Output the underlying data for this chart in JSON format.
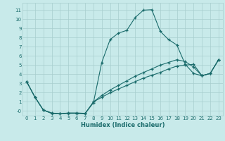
{
  "xlabel": "Humidex (Indice chaleur)",
  "background_color": "#c8eaea",
  "grid_color": "#a8cece",
  "line_color": "#1a6b6b",
  "xticks": [
    0,
    1,
    2,
    3,
    4,
    5,
    6,
    7,
    8,
    9,
    10,
    11,
    12,
    13,
    14,
    15,
    16,
    17,
    18,
    19,
    20,
    21,
    22,
    23
  ],
  "yticks": [
    0,
    1,
    2,
    3,
    4,
    5,
    6,
    7,
    8,
    9,
    10,
    11
  ],
  "ytick_labels": [
    "-0",
    "1",
    "2",
    "3",
    "4",
    "5",
    "6",
    "7",
    "8",
    "9",
    "10",
    "11"
  ],
  "xlim": [
    -0.5,
    23.5
  ],
  "ylim": [
    -0.5,
    11.8
  ],
  "line1_x": [
    0,
    1,
    2,
    3,
    4,
    5,
    6,
    7,
    8,
    9,
    10,
    11,
    12,
    13,
    14,
    15,
    16,
    17,
    18,
    19,
    20,
    21,
    22,
    23
  ],
  "line1_y": [
    3.2,
    1.5,
    0.1,
    -0.2,
    -0.3,
    -0.2,
    -0.2,
    -0.25,
    0.9,
    5.3,
    7.8,
    8.5,
    8.8,
    10.2,
    11.0,
    11.05,
    8.7,
    7.8,
    7.2,
    5.1,
    4.1,
    3.85,
    4.1,
    5.6
  ],
  "line2_x": [
    0,
    1,
    2,
    3,
    4,
    5,
    6,
    7,
    8,
    9,
    10,
    11,
    12,
    13,
    14,
    15,
    16,
    17,
    18,
    19,
    20,
    21,
    22,
    23
  ],
  "line2_y": [
    3.2,
    1.5,
    0.1,
    -0.25,
    -0.3,
    -0.25,
    -0.25,
    -0.3,
    1.0,
    1.5,
    2.0,
    2.4,
    2.8,
    3.2,
    3.6,
    3.9,
    4.2,
    4.6,
    4.9,
    5.0,
    5.1,
    3.85,
    4.1,
    5.6
  ],
  "line3_x": [
    0,
    1,
    2,
    3,
    4,
    5,
    6,
    7,
    8,
    9,
    10,
    11,
    12,
    13,
    14,
    15,
    16,
    17,
    18,
    19,
    20,
    21,
    22,
    23
  ],
  "line3_y": [
    3.2,
    1.5,
    0.1,
    -0.25,
    -0.3,
    -0.25,
    -0.25,
    -0.3,
    1.0,
    1.7,
    2.3,
    2.8,
    3.3,
    3.8,
    4.2,
    4.6,
    5.0,
    5.3,
    5.6,
    5.4,
    4.8,
    3.85,
    4.1,
    5.6
  ]
}
